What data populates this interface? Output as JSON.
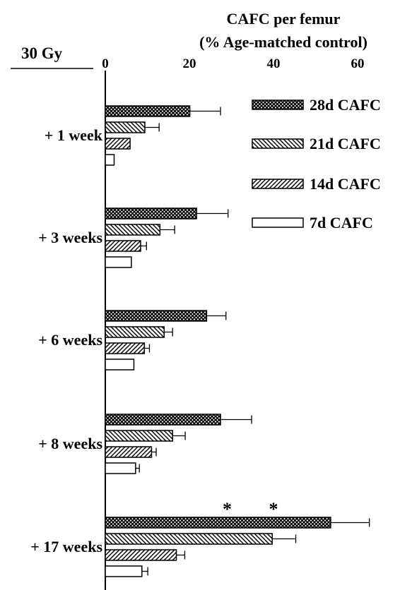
{
  "chart_data": {
    "type": "bar",
    "orientation": "horizontal",
    "title": "30 Gy",
    "xlabel_line1": "CAFC per femur",
    "xlabel_line2": "(% Age-matched control)",
    "xlim": [
      0,
      70
    ],
    "xticks": [
      0,
      20,
      40,
      60
    ],
    "x_axis_position": "top",
    "legend_position": "top-right",
    "grid": false,
    "categories": [
      "+ 1 week",
      "+ 3 weeks",
      "+ 6 weeks",
      "+ 8 weeks",
      "+ 17 weeks"
    ],
    "series": [
      {
        "name": "28d CAFC",
        "pattern": "crosshatch",
        "values": [
          20.1,
          21.7,
          24.1,
          27.4,
          53.6
        ],
        "errors": [
          7.3,
          7.5,
          4.6,
          7.4,
          9.2
        ]
      },
      {
        "name": "21d CAFC",
        "pattern": "backslash",
        "values": [
          9.4,
          13.0,
          14.0,
          16.0,
          39.7
        ],
        "errors": [
          3.4,
          3.5,
          2.0,
          3.0,
          5.6
        ]
      },
      {
        "name": "14d CAFC",
        "pattern": "slash",
        "values": [
          5.9,
          8.4,
          9.3,
          11.0,
          16.9
        ],
        "errors": [
          0,
          1.4,
          1.2,
          1.1,
          2.0
        ]
      },
      {
        "name": "7d CAFC",
        "pattern": "open",
        "values": [
          2.1,
          6.2,
          6.8,
          7.2,
          8.7
        ],
        "errors": [
          0,
          0,
          0,
          0.9,
          1.4
        ]
      }
    ],
    "annotations": [
      {
        "text": "*",
        "category": "+ 17 weeks",
        "x": 29
      },
      {
        "text": "*",
        "category": "+ 17 weeks",
        "x": 40
      }
    ]
  }
}
